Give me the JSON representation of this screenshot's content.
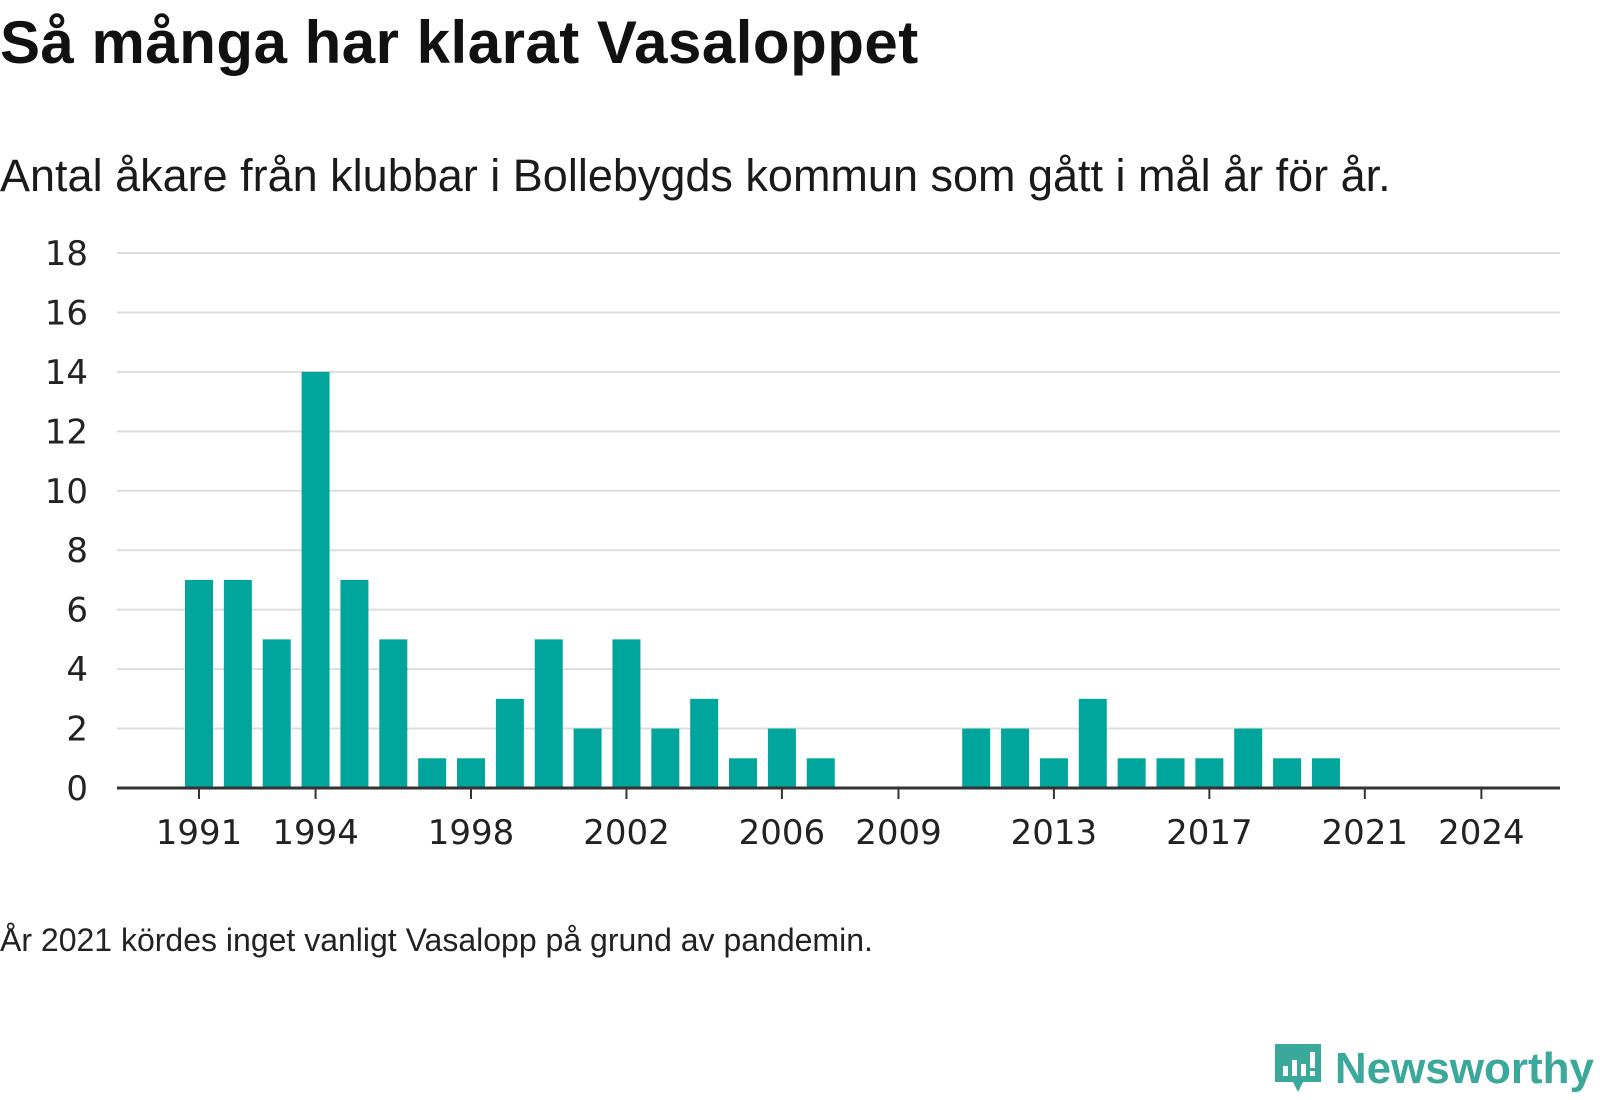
{
  "title": "Så många har klarat Vasaloppet",
  "subtitle": "Antal åkare från klubbar i Bollebygds kommun som gått i mål år för år.",
  "note": "År 2021 kördes inget vanligt Vasalopp på grund av pandemin.",
  "brand": {
    "name": "Newsworthy",
    "icon": "newsworthy-chart-icon",
    "color": "#3aa89a"
  },
  "colors": {
    "bar": "#00a59b",
    "grid": "#dddddd",
    "axis": "#333333"
  },
  "chart_data": {
    "type": "bar",
    "categories": [
      1991,
      1992,
      1993,
      1994,
      1995,
      1996,
      1997,
      1998,
      1999,
      2000,
      2001,
      2002,
      2003,
      2004,
      2005,
      2006,
      2007,
      2008,
      2009,
      2010,
      2011,
      2012,
      2013,
      2014,
      2015,
      2016,
      2017,
      2018,
      2019,
      2020,
      2021,
      2022,
      2023,
      2024
    ],
    "values": [
      7,
      7,
      5,
      14,
      7,
      5,
      1,
      1,
      3,
      5,
      2,
      5,
      2,
      3,
      1,
      2,
      1,
      0,
      0,
      0,
      2,
      2,
      1,
      3,
      1,
      1,
      1,
      2,
      1,
      1,
      0,
      0,
      0,
      0
    ],
    "x_ticks": [
      "1991",
      "1994",
      "1998",
      "2002",
      "2006",
      "2009",
      "2013",
      "2017",
      "2021",
      "2024"
    ],
    "y_ticks": [
      "0",
      "2",
      "4",
      "6",
      "8",
      "10",
      "12",
      "14",
      "16",
      "18"
    ],
    "ylim": [
      0,
      18
    ],
    "grid": true,
    "title": "Så många har klarat Vasaloppet",
    "subtitle": "Antal åkare från klubbar i Bollebygds kommun som gått i mål år för år.",
    "xlabel": "",
    "ylabel": ""
  }
}
